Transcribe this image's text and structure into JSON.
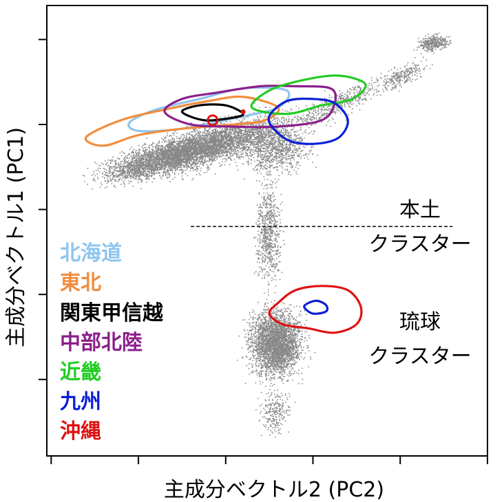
{
  "chart_data": {
    "type": "scatter",
    "title": "",
    "xlabel": "主成分ベクトル2 (PC2)",
    "ylabel": "主成分ベクトル1 (PC1)",
    "xlim": [
      -0.055,
      0.45
    ],
    "ylim": [
      -0.78,
      0.28
    ],
    "x_ticks": [
      -0.05,
      0.05,
      0.15,
      0.25,
      0.35,
      0.45
    ],
    "y_ticks": [
      -0.6,
      -0.4,
      -0.2,
      0.0,
      0.2
    ],
    "tick_labels_shown": false,
    "grid": false,
    "legend": {
      "placement": "left",
      "entries": [
        {
          "label": "北海道",
          "color": "#8ec5ee"
        },
        {
          "label": "東北",
          "color": "#f28c3c"
        },
        {
          "label": "関東甲信越",
          "color": "#000000"
        },
        {
          "label": "中部北陸",
          "color": "#8b1f8b"
        },
        {
          "label": "近畿",
          "color": "#22cc22"
        },
        {
          "label": "九州",
          "color": "#0a1fd6"
        },
        {
          "label": "沖縄",
          "color": "#e01010"
        }
      ]
    },
    "annotations": {
      "mainland_cluster": [
        "本土",
        "クラスター"
      ],
      "ryukyu_cluster": [
        "琉球",
        "クラスター"
      ],
      "divider_y": -0.24,
      "divider_x_range": [
        0.11,
        0.41
      ]
    },
    "point_cloud_color": "#888888",
    "series": [
      {
        "name": "北海道",
        "color": "#8ec5ee",
        "shape": "contour",
        "x": [
          0.04,
          0.07,
          0.12,
          0.17,
          0.22,
          0.21,
          0.16,
          0.1,
          0.05,
          0.04
        ],
        "y": [
          0.005,
          0.035,
          0.06,
          0.085,
          0.08,
          0.04,
          0.015,
          -0.01,
          -0.015,
          0.005
        ]
      },
      {
        "name": "東北",
        "color": "#f28c3c",
        "shape": "contour",
        "x": [
          -0.01,
          0.03,
          0.08,
          0.13,
          0.17,
          0.21,
          0.195,
          0.16,
          0.1,
          0.05,
          0.01,
          -0.01
        ],
        "y": [
          -0.03,
          0.01,
          0.035,
          0.055,
          0.065,
          0.04,
          0.01,
          0.0,
          -0.01,
          -0.025,
          -0.05,
          -0.03
        ]
      },
      {
        "name": "関東甲信越",
        "color": "#000000",
        "shape": "contour",
        "x": [
          0.1,
          0.12,
          0.15,
          0.17,
          0.155,
          0.125,
          0.1
        ],
        "y": [
          0.03,
          0.045,
          0.045,
          0.025,
          0.015,
          0.01,
          0.03
        ]
      },
      {
        "name": "中部北陸",
        "color": "#8b1f8b",
        "shape": "contour",
        "x": [
          0.08,
          0.1,
          0.14,
          0.19,
          0.23,
          0.27,
          0.275,
          0.26,
          0.21,
          0.16,
          0.11,
          0.08
        ],
        "y": [
          0.03,
          0.06,
          0.075,
          0.09,
          0.09,
          0.085,
          0.05,
          0.01,
          -0.005,
          -0.005,
          0.0,
          0.03
        ]
      },
      {
        "name": "近畿",
        "color": "#22cc22",
        "shape": "contour",
        "x": [
          0.18,
          0.2,
          0.24,
          0.28,
          0.31,
          0.295,
          0.26,
          0.22,
          0.18
        ],
        "y": [
          0.04,
          0.08,
          0.105,
          0.115,
          0.095,
          0.06,
          0.045,
          0.025,
          0.04
        ]
      },
      {
        "name": "九州",
        "color": "#0a1fd6",
        "shape": "contour",
        "x": [
          0.2,
          0.22,
          0.25,
          0.275,
          0.29,
          0.28,
          0.255,
          0.225,
          0.205,
          0.2
        ],
        "y": [
          0.02,
          0.055,
          0.06,
          0.05,
          0.01,
          -0.03,
          -0.045,
          -0.04,
          -0.01,
          0.02
        ]
      },
      {
        "name": "沖縄",
        "color": "#e01010",
        "shape": "contour",
        "x": [
          0.21,
          0.23,
          0.26,
          0.29,
          0.305,
          0.3,
          0.275,
          0.245,
          0.215,
          0.2,
          0.21
        ],
        "y": [
          -0.42,
          -0.39,
          -0.38,
          -0.39,
          -0.43,
          -0.47,
          -0.49,
          -0.48,
          -0.47,
          -0.445,
          -0.42
        ]
      },
      {
        "name": "九州",
        "color": "#0a1fd6",
        "shape": "contour",
        "x": [
          0.245,
          0.255,
          0.265,
          0.265,
          0.25,
          0.24,
          0.245
        ],
        "y": [
          -0.42,
          -0.415,
          -0.425,
          -0.44,
          -0.445,
          -0.43,
          -0.42
        ]
      },
      {
        "name": "沖縄",
        "color": "#e01010",
        "shape": "circle",
        "x": [
          0.135
        ],
        "y": [
          0.01
        ]
      },
      {
        "name": "沖縄",
        "color": "#e01010",
        "shape": "dot",
        "x": [
          0.17
        ],
        "y": [
          0.03
        ]
      }
    ]
  }
}
